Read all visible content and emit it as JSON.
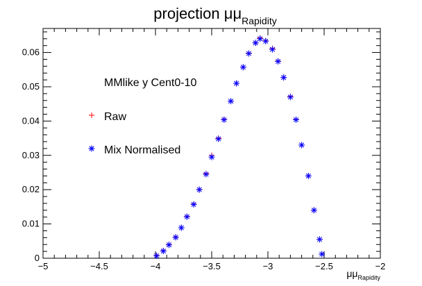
{
  "chart_data": {
    "type": "scatter",
    "title": "projection μμ",
    "title_subscript": "Rapidity",
    "xlabel": "μμ",
    "xlabel_subscript": "Rapidity",
    "ylabel": "",
    "xlim": [
      -5,
      -2
    ],
    "ylim": [
      0,
      0.067
    ],
    "grid": false,
    "x_ticks": [
      -5,
      -4.5,
      -4,
      -3.5,
      -3,
      -2.5,
      -2
    ],
    "x_tick_labels": [
      "−5",
      "−4.5",
      "−4",
      "−3.5",
      "−3",
      "−2.5",
      "−2"
    ],
    "y_ticks": [
      0,
      0.01,
      0.02,
      0.03,
      0.04,
      0.05,
      0.06
    ],
    "y_tick_labels": [
      "0",
      "0.01",
      "0.02",
      "0.03",
      "0.04",
      "0.05",
      "0.06"
    ],
    "legend": {
      "header": "MMlike y Cent0-10",
      "placement": "top-left",
      "entries": [
        {
          "label": "Raw",
          "marker": "plus",
          "color": "#ff0000"
        },
        {
          "label": "Mix Normalised",
          "marker": "asterisk",
          "color": "#0000ff"
        }
      ]
    },
    "series": [
      {
        "name": "Raw",
        "marker": "plus",
        "color": "#ff0000",
        "x": [
          -3.99,
          -3.93,
          -3.88,
          -3.82,
          -3.77,
          -3.72,
          -3.66,
          -3.61,
          -3.55,
          -3.5,
          -3.44,
          -3.39,
          -3.33,
          -3.28,
          -3.22,
          -3.17,
          -3.11,
          -3.07,
          -3.02,
          -2.96,
          -2.91,
          -2.86,
          -2.8,
          -2.75,
          -2.7,
          -2.64,
          -2.59,
          -2.54
        ],
        "y": [
          0.0008,
          0.0022,
          0.004,
          0.0062,
          0.0089,
          0.0122,
          0.0158,
          0.02,
          0.0247,
          0.03,
          0.035,
          0.0405,
          0.0458,
          0.051,
          0.0557,
          0.0598,
          0.0628,
          0.0642,
          0.0634,
          0.0612,
          0.0575,
          0.0527,
          0.0472,
          0.0405,
          0.033,
          0.024,
          0.014,
          0.0055
        ]
      },
      {
        "name": "Mix Normalised",
        "marker": "asterisk",
        "color": "#0000ff",
        "x": [
          -3.99,
          -3.93,
          -3.88,
          -3.82,
          -3.77,
          -3.72,
          -3.66,
          -3.61,
          -3.55,
          -3.5,
          -3.44,
          -3.39,
          -3.33,
          -3.28,
          -3.22,
          -3.17,
          -3.11,
          -3.07,
          -3.02,
          -2.96,
          -2.91,
          -2.86,
          -2.8,
          -2.75,
          -2.7,
          -2.64,
          -2.59,
          -2.54,
          -2.52
        ],
        "y": [
          0.0007,
          0.0021,
          0.0039,
          0.0061,
          0.0089,
          0.0121,
          0.0157,
          0.02,
          0.0245,
          0.0295,
          0.0348,
          0.0404,
          0.0458,
          0.051,
          0.0557,
          0.0597,
          0.0628,
          0.064,
          0.0633,
          0.0609,
          0.0574,
          0.0527,
          0.047,
          0.0404,
          0.033,
          0.024,
          0.014,
          0.0055,
          0.0012
        ]
      }
    ]
  }
}
